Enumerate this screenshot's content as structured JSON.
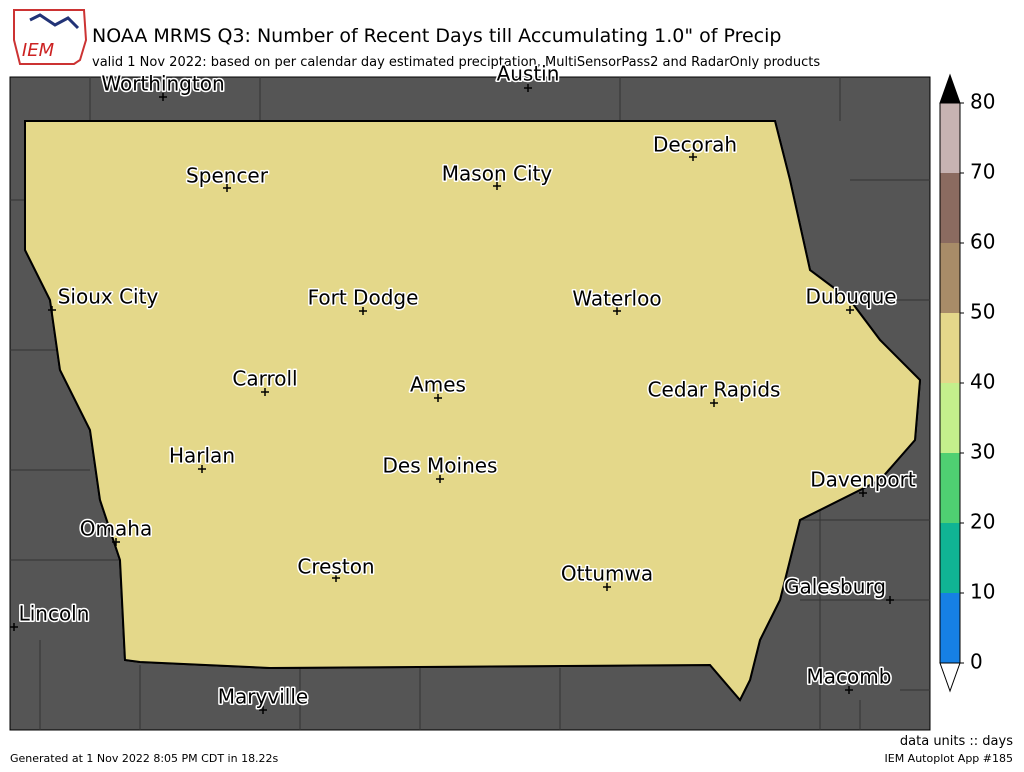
{
  "header": {
    "logo": "IEM",
    "title": "NOAA MRMS Q3: Number of Recent Days till Accumulating 1.0\" of Precip",
    "subtitle": "valid 1 Nov 2022: based on per calendar day estimated preciptation, MultiSensorPass2 and RadarOnly products"
  },
  "cities": [
    "Worthington",
    "Austin",
    "Decorah",
    "Spencer",
    "Mason City",
    "Sioux City",
    "Fort Dodge",
    "Waterloo",
    "Dubuque",
    "Carroll",
    "Ames",
    "Cedar Rapids",
    "Harlan",
    "Des Moines",
    "Davenport",
    "Omaha",
    "Creston",
    "Ottumwa",
    "Galesburg",
    "Lincoln",
    "Macomb",
    "Maryville"
  ],
  "colorbar": {
    "ticks": [
      0,
      10,
      20,
      30,
      40,
      50,
      60,
      70,
      80
    ],
    "colors": [
      "#1680e4",
      "#10b494",
      "#4fd072",
      "#c4ef8c",
      "#e4d88a",
      "#a88c68",
      "#8b6b60",
      "#c7b3b2"
    ],
    "over_color": "#000000",
    "under_color": "#ffffff",
    "units": "data units :: days"
  },
  "footer": {
    "generated": "Generated at 1 Nov 2022 8:05 PM CDT in 18.22s",
    "app": "IEM Autoplot App #185"
  }
}
